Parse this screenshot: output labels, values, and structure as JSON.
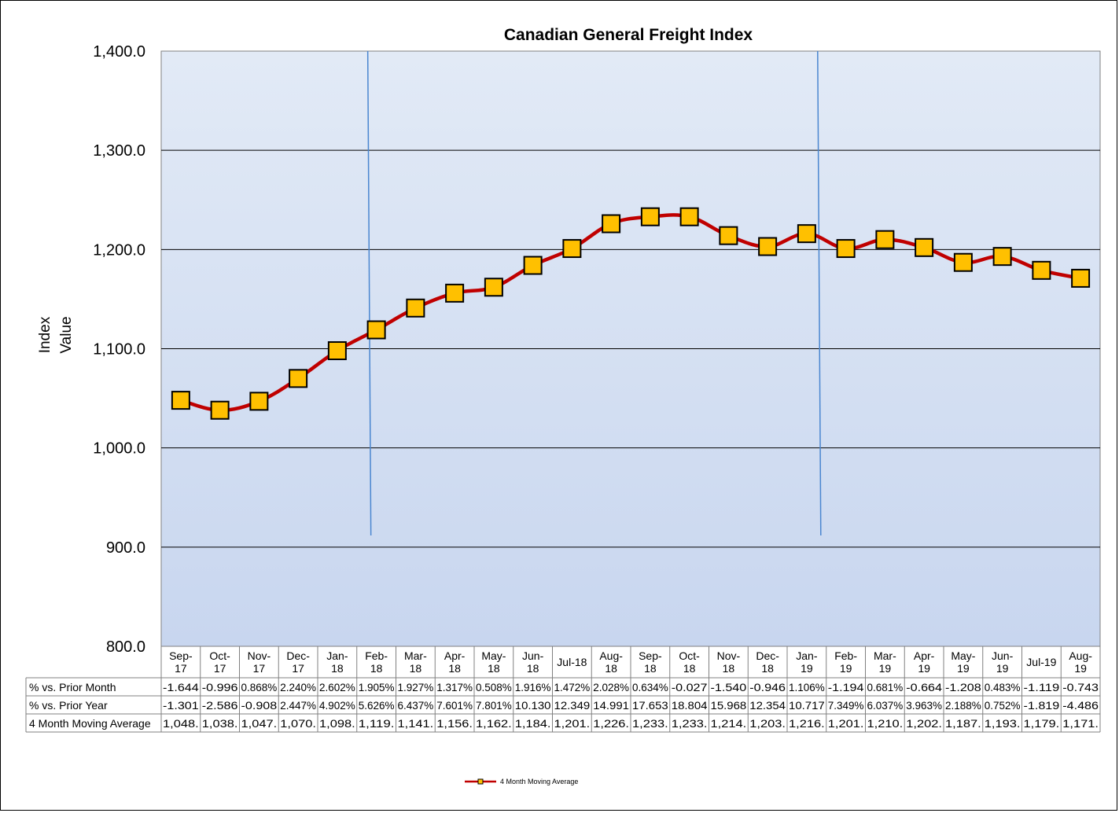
{
  "chart_data": {
    "type": "line",
    "title": "Canadian General Freight Index",
    "ylabel_lines": [
      "Index",
      "Value"
    ],
    "ylim": [
      800,
      1400
    ],
    "y_ticks": [
      "800.0",
      "900.0",
      "1,000.0",
      "1,100.0",
      "1,200.0",
      "1,300.0",
      "1,400.0"
    ],
    "y_tick_values": [
      800,
      900,
      1000,
      1100,
      1200,
      1300,
      1400
    ],
    "grid": true,
    "legend_position": "bottom-center",
    "categories": [
      [
        "Sep-",
        "17"
      ],
      [
        "Oct-",
        "17"
      ],
      [
        "Nov-",
        "17"
      ],
      [
        "Dec-",
        "17"
      ],
      [
        "Jan-",
        "18"
      ],
      [
        "Feb-",
        "18"
      ],
      [
        "Mar-",
        "18"
      ],
      [
        "Apr-",
        "18"
      ],
      [
        "May-",
        "18"
      ],
      [
        "Jun-",
        "18"
      ],
      [
        "Jul-18"
      ],
      [
        "Aug-",
        "18"
      ],
      [
        "Sep-",
        "18"
      ],
      [
        "Oct-",
        "18"
      ],
      [
        "Nov-",
        "18"
      ],
      [
        "Dec-",
        "18"
      ],
      [
        "Jan-",
        "19"
      ],
      [
        "Feb-",
        "19"
      ],
      [
        "Mar-",
        "19"
      ],
      [
        "Apr-",
        "19"
      ],
      [
        "May-",
        "19"
      ],
      [
        "Jun-",
        "19"
      ],
      [
        "Jul-19"
      ],
      [
        "Aug-",
        "19"
      ]
    ],
    "series": [
      {
        "name": "4 Month Moving Average",
        "color": "#c00000",
        "marker_color": "#ffc000",
        "values": [
          1048,
          1038,
          1047,
          1070,
          1098,
          1119,
          1141,
          1156,
          1162,
          1184,
          1201,
          1226,
          1233,
          1233,
          1214,
          1203,
          1216,
          1201,
          1210,
          1202,
          1187,
          1193,
          1179,
          1171
        ]
      }
    ],
    "vertical_markers_after_index": [
      4.5,
      16
    ],
    "table": {
      "rows": [
        {
          "label": "% vs. Prior Month",
          "cells": [
            "-1.644",
            "-0.996",
            "0.868%",
            "2.240%",
            "2.602%",
            "1.905%",
            "1.927%",
            "1.317%",
            "0.508%",
            "1.916%",
            "1.472%",
            "2.028%",
            "0.634%",
            "-0.027",
            "-1.540",
            "-0.946",
            "1.106%",
            "-1.194",
            "0.681%",
            "-0.664",
            "-1.208",
            "0.483%",
            "-1.119",
            "-0.743"
          ]
        },
        {
          "label": "% vs. Prior Year",
          "cells": [
            "-1.301",
            "-2.586",
            "-0.908",
            "2.447%",
            "4.902%",
            "5.626%",
            "6.437%",
            "7.601%",
            "7.801%",
            "10.130",
            "12.349",
            "14.991",
            "17.653",
            "18.804",
            "15.968",
            "12.354",
            "10.717",
            "7.349%",
            "6.037%",
            "3.963%",
            "2.188%",
            "0.752%",
            "-1.819",
            "-4.486"
          ]
        },
        {
          "label": "4 Month Moving Average",
          "cells": [
            "1,048.",
            "1,038.",
            "1,047.",
            "1,070.",
            "1,098.",
            "1,119.",
            "1,141.",
            "1,156.",
            "1,162.",
            "1,184.",
            "1,201.",
            "1,226.",
            "1,233.",
            "1,233.",
            "1,214.",
            "1,203.",
            "1,216.",
            "1,201.",
            "1,210.",
            "1,202.",
            "1,187.",
            "1,193.",
            "1,179.",
            "1,171."
          ]
        }
      ]
    },
    "colors": {
      "plot_bg_top": "#e2eaf6",
      "plot_bg_bottom": "#c8d6ef",
      "marker_line": "#4a86d0",
      "grid": "#000000"
    }
  }
}
